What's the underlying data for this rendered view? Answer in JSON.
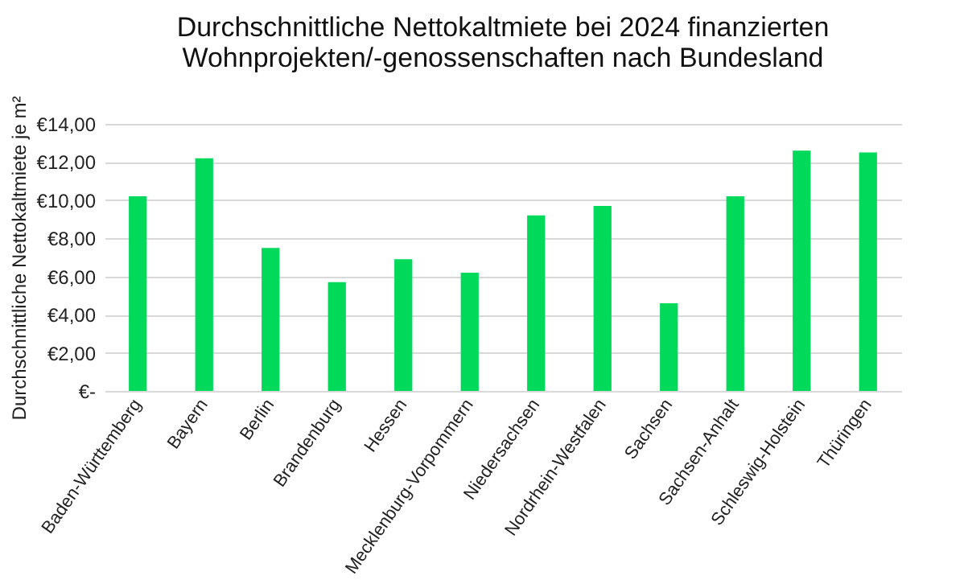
{
  "chart_data": {
    "type": "bar",
    "title": [
      "Durchschnittliche Nettokaltmiete bei 2024 finanzierten",
      "Wohnprojekten/-genossenschaften nach Bundesland"
    ],
    "ylabel": "Durchschnittliche Nettokaltmiete je m²",
    "categories": [
      "Baden-Württemberg",
      "Bayern",
      "Berlin",
      "Brandenburg",
      "Hessen",
      "Mecklenburg-Vorpommern",
      "Niedersachsen",
      "Nordrhein-Westfalen",
      "Sachsen",
      "Sachsen-Anhalt",
      "Schleswig-Holstein",
      "Thüringen"
    ],
    "values": [
      10.2,
      12.2,
      7.5,
      5.7,
      6.9,
      6.2,
      9.2,
      9.7,
      4.6,
      10.2,
      12.6,
      12.5
    ],
    "color": "#00d95a",
    "ylim": [
      0,
      14
    ],
    "yticks": [
      {
        "value": 0,
        "label": "€-"
      },
      {
        "value": 2,
        "label": "€2,00"
      },
      {
        "value": 4,
        "label": "€4,00"
      },
      {
        "value": 6,
        "label": "€6,00"
      },
      {
        "value": 8,
        "label": "€8,00"
      },
      {
        "value": 10,
        "label": "€10,00"
      },
      {
        "value": 12,
        "label": "€12,00"
      },
      {
        "value": 14,
        "label": "€14,00"
      }
    ],
    "grid": "y"
  }
}
